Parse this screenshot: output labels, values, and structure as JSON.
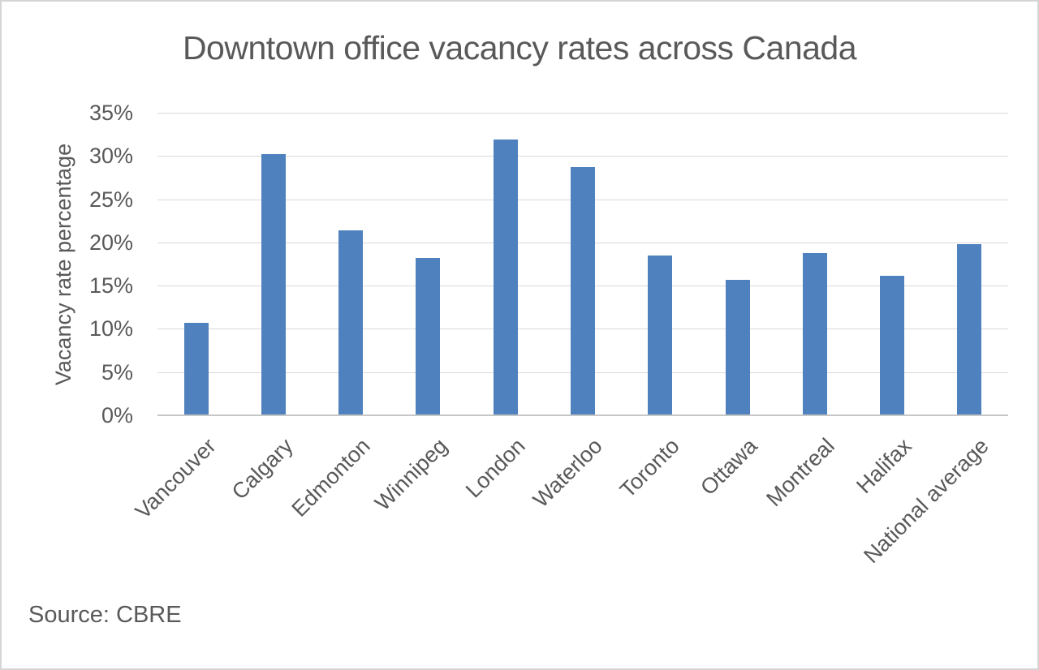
{
  "source": "Source: CBRE",
  "colors": {
    "bar": "#4E81BD",
    "text": "#595959",
    "gridline": "#D9D9D9",
    "axis_line": "#C6C6C6",
    "canvas_border": "#D5D5D5",
    "background": "#FFFFFF"
  },
  "chart_data": {
    "type": "bar",
    "title": "Downtown office vacancy rates across Canada",
    "categories": [
      "Vancouver",
      "Calgary",
      "Edmonton",
      "Winnipeg",
      "London",
      "Waterloo",
      "Toronto",
      "Ottawa",
      "Montreal",
      "Halifax",
      "National average"
    ],
    "values": [
      10.7,
      30.2,
      21.4,
      18.2,
      31.9,
      28.7,
      18.5,
      15.7,
      18.8,
      16.1,
      19.8
    ],
    "unit": "%",
    "xlabel": "",
    "ylabel": "Vacancy rate percentage",
    "ylim": [
      0,
      35
    ],
    "ytick_step": 5,
    "yticks": [
      "0%",
      "5%",
      "10%",
      "15%",
      "20%",
      "25%",
      "30%",
      "35%"
    ],
    "grid": true,
    "legend": false,
    "source_note": "Source: CBRE"
  }
}
